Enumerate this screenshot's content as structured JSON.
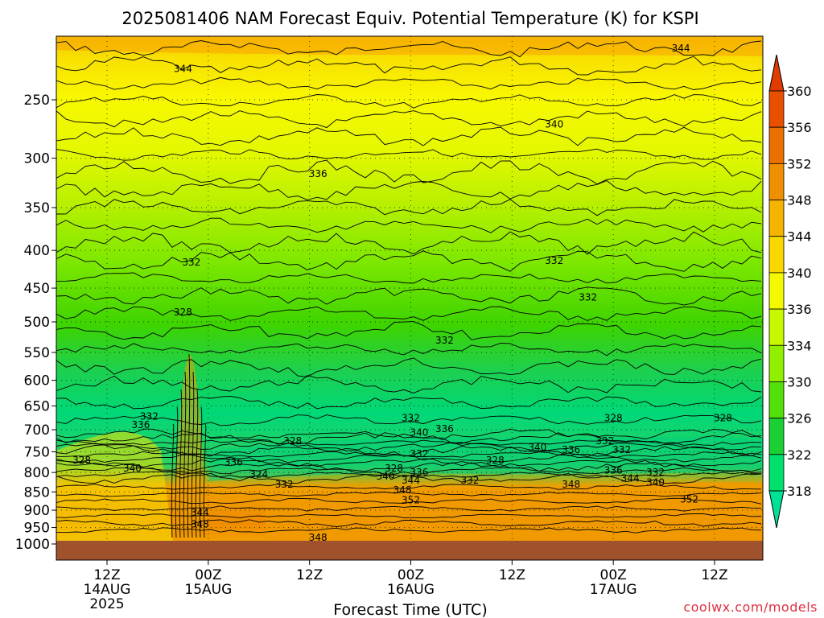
{
  "chart_data": {
    "type": "contour",
    "title": "2025081406 NAM Forecast Equiv. Potential Temperature (K) for KSPI",
    "xlabel": "Forecast Time (UTC)",
    "ylabel": "",
    "y_scale": "log-pressure",
    "y_reversed": true,
    "y_range": [
      1000,
      200
    ],
    "y_ticks": [
      "250",
      "300",
      "350",
      "400",
      "450",
      "500",
      "550",
      "600",
      "650",
      "700",
      "750",
      "800",
      "850",
      "900",
      "950",
      "1000"
    ],
    "x_range": [
      "2025-08-14 06Z",
      "2025-08-17 18Z"
    ],
    "x_ticks": [
      {
        "time": "2025-08-14 12Z",
        "line1": "12Z",
        "line2": "14AUG",
        "line3": "2025"
      },
      {
        "time": "2025-08-15 00Z",
        "line1": "00Z",
        "line2": "15AUG",
        "line3": ""
      },
      {
        "time": "2025-08-15 12Z",
        "line1": "12Z",
        "line2": "",
        "line3": ""
      },
      {
        "time": "2025-08-16 00Z",
        "line1": "00Z",
        "line2": "16AUG",
        "line3": ""
      },
      {
        "time": "2025-08-16 12Z",
        "line1": "12Z",
        "line2": "",
        "line3": ""
      },
      {
        "time": "2025-08-17 00Z",
        "line1": "00Z",
        "line2": "17AUG",
        "line3": ""
      },
      {
        "time": "2025-08-17 12Z",
        "line1": "12Z",
        "line2": "",
        "line3": ""
      }
    ],
    "grid": true,
    "colorbar": {
      "placement": "right",
      "levels": [
        318,
        322,
        326,
        330,
        334,
        336,
        340,
        344,
        348,
        352,
        356,
        360
      ],
      "colors": [
        "#00e296",
        "#00e06a",
        "#1ad034",
        "#52e00a",
        "#90f000",
        "#c8f800",
        "#f4f800",
        "#f8d800",
        "#f4b400",
        "#f09000",
        "#ec7000",
        "#e85000",
        "#e03c00"
      ],
      "extend": "both"
    },
    "contour_labels": [
      {
        "value": "344",
        "time": "2025-08-17 08Z",
        "pressure": 213
      },
      {
        "value": "344",
        "time": "2025-08-14 21Z",
        "pressure": 227
      },
      {
        "value": "340",
        "time": "2025-08-16 17Z",
        "pressure": 270
      },
      {
        "value": "336",
        "time": "2025-08-15 13Z",
        "pressure": 315
      },
      {
        "value": "332",
        "time": "2025-08-14 22Z",
        "pressure": 415
      },
      {
        "value": "332",
        "time": "2025-08-16 17Z",
        "pressure": 413
      },
      {
        "value": "332",
        "time": "2025-08-16 21Z",
        "pressure": 463
      },
      {
        "value": "328",
        "time": "2025-08-14 21Z",
        "pressure": 485
      },
      {
        "value": "332",
        "time": "2025-08-16 04Z",
        "pressure": 530
      },
      {
        "value": "332",
        "time": "2025-08-14 17Z",
        "pressure": 672
      },
      {
        "value": "336",
        "time": "2025-08-14 16Z",
        "pressure": 690
      },
      {
        "value": "332",
        "time": "2025-08-16 00Z",
        "pressure": 675
      },
      {
        "value": "340",
        "time": "2025-08-16 01Z",
        "pressure": 706
      },
      {
        "value": "336",
        "time": "2025-08-16 04Z",
        "pressure": 698
      },
      {
        "value": "328",
        "time": "2025-08-17 00Z",
        "pressure": 675
      },
      {
        "value": "328",
        "time": "2025-08-17 13Z",
        "pressure": 675
      },
      {
        "value": "328",
        "time": "2025-08-15 10Z",
        "pressure": 725
      },
      {
        "value": "332",
        "time": "2025-08-16 23Z",
        "pressure": 725
      },
      {
        "value": "340",
        "time": "2025-08-16 15Z",
        "pressure": 740
      },
      {
        "value": "336",
        "time": "2025-08-16 19Z",
        "pressure": 745
      },
      {
        "value": "332",
        "time": "2025-08-17 01Z",
        "pressure": 745
      },
      {
        "value": "332",
        "time": "2025-08-16 01Z",
        "pressure": 755
      },
      {
        "value": "328",
        "time": "2025-08-14 09Z",
        "pressure": 770
      },
      {
        "value": "340",
        "time": "2025-08-14 15Z",
        "pressure": 790
      },
      {
        "value": "336",
        "time": "2025-08-15 03Z",
        "pressure": 775
      },
      {
        "value": "328",
        "time": "2025-08-16 10Z",
        "pressure": 770
      },
      {
        "value": "328",
        "time": "2025-08-15 22Z",
        "pressure": 790
      },
      {
        "value": "336",
        "time": "2025-08-16 01Z",
        "pressure": 800
      },
      {
        "value": "336",
        "time": "2025-08-17 00Z",
        "pressure": 795
      },
      {
        "value": "332",
        "time": "2025-08-17 05Z",
        "pressure": 800
      },
      {
        "value": "324",
        "time": "2025-08-15 06Z",
        "pressure": 805
      },
      {
        "value": "340",
        "time": "2025-08-15 21Z",
        "pressure": 810
      },
      {
        "value": "344",
        "time": "2025-08-16 00Z",
        "pressure": 820
      },
      {
        "value": "332",
        "time": "2025-08-16 07Z",
        "pressure": 820
      },
      {
        "value": "344",
        "time": "2025-08-17 02Z",
        "pressure": 815
      },
      {
        "value": "340",
        "time": "2025-08-17 05Z",
        "pressure": 825
      },
      {
        "value": "332",
        "time": "2025-08-15 09Z",
        "pressure": 830
      },
      {
        "value": "348",
        "time": "2025-08-15 23Z",
        "pressure": 845
      },
      {
        "value": "348",
        "time": "2025-08-16 19Z",
        "pressure": 830
      },
      {
        "value": "352",
        "time": "2025-08-16 00Z",
        "pressure": 872
      },
      {
        "value": "352",
        "time": "2025-08-17 09Z",
        "pressure": 870
      },
      {
        "value": "344",
        "time": "2025-08-14 23Z",
        "pressure": 907
      },
      {
        "value": "348",
        "time": "2025-08-14 23Z",
        "pressure": 940
      },
      {
        "value": "348",
        "time": "2025-08-15 13Z",
        "pressure": 980
      }
    ]
  },
  "credit": "coolwx.com/models"
}
